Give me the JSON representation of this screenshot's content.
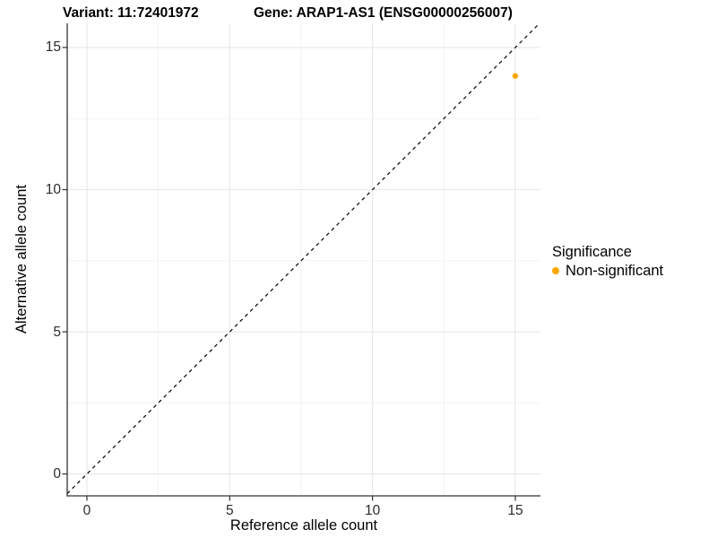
{
  "chart_data": {
    "type": "scatter",
    "title_left": "Variant: 11:72401972",
    "title_right": "Gene: ARAP1-AS1 (ENSG00000256007)",
    "xlabel": "Reference allele count",
    "ylabel": "Alternative allele count",
    "x_ticks": [
      0,
      5,
      10,
      15
    ],
    "y_ticks": [
      0,
      5,
      10,
      15
    ],
    "xlim": [
      -0.69,
      15.88
    ],
    "ylim": [
      -0.77,
      15.85
    ],
    "grid": "major and minor gridlines, light grey on white panel",
    "reference_line": {
      "slope": 1,
      "intercept": 0,
      "style": "dashed",
      "color": "#000000"
    },
    "points": [
      {
        "x": 15,
        "y": 14,
        "series": "Non-significant",
        "color": "#FFA500"
      }
    ],
    "legend": {
      "title": "Significance",
      "position": "right",
      "items": [
        {
          "label": "Non-significant",
          "color": "#FFA500"
        }
      ]
    },
    "colors": {
      "axis_line": "#333333",
      "tick_label": "#2b2b2b",
      "grid_major": "#e7e7e7",
      "grid_minor": "#f2f2f2"
    }
  }
}
